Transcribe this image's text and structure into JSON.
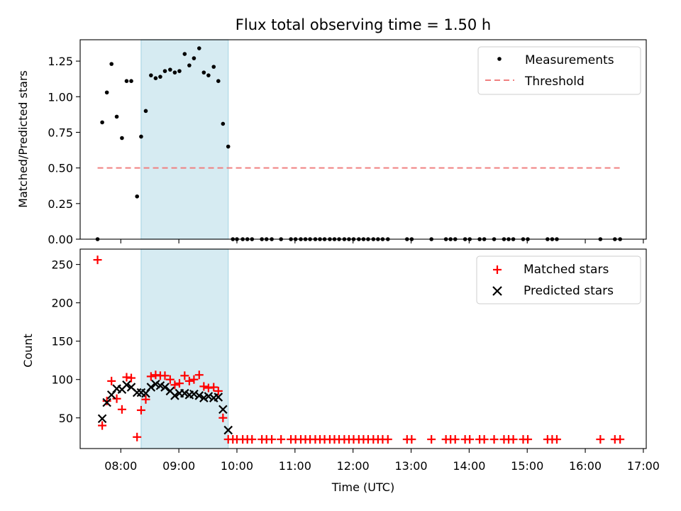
{
  "title": "Flux total observing time = 1.50 h",
  "chart_data": [
    {
      "type": "scatter",
      "ylabel": "Matched/Predicted stars",
      "xlabel": "",
      "xlim": [
        7.3,
        17.05
      ],
      "ylim": [
        0,
        1.4
      ],
      "yticks": [
        0,
        0.25,
        0.5,
        0.75,
        1.0,
        1.25
      ],
      "ytick_labels": [
        "0.00",
        "0.25",
        "0.50",
        "0.75",
        "1.00",
        "1.25"
      ],
      "shaded_span": [
        8.35,
        9.85
      ],
      "legend": [
        "Measurements",
        "Threshold"
      ],
      "threshold": {
        "name": "Threshold",
        "value": 0.5,
        "x": [
          7.6,
          16.6
        ],
        "color": "#f08080"
      },
      "series": [
        {
          "name": "Measurements",
          "color": "#000000",
          "x": [
            7.6,
            7.68,
            7.76,
            7.84,
            7.93,
            8.02,
            8.1,
            8.18,
            8.28,
            8.35,
            8.43,
            8.52,
            8.6,
            8.68,
            8.76,
            8.85,
            8.93,
            9.01,
            9.1,
            9.18,
            9.26,
            9.35,
            9.43,
            9.51,
            9.6,
            9.68,
            9.76,
            9.85,
            9.93,
            10.0,
            10.1,
            10.18,
            10.26,
            10.43,
            10.51,
            10.6,
            10.76,
            10.93,
            11.01,
            11.1,
            11.18,
            11.26,
            11.35,
            11.43,
            11.51,
            11.6,
            11.68,
            11.76,
            11.85,
            11.93,
            12.01,
            12.1,
            12.18,
            12.26,
            12.35,
            12.43,
            12.51,
            12.6,
            12.93,
            13.01,
            13.35,
            13.6,
            13.68,
            13.76,
            13.93,
            14.01,
            14.18,
            14.26,
            14.43,
            14.6,
            14.68,
            14.76,
            14.93,
            15.01,
            15.35,
            15.43,
            15.51,
            16.26,
            16.51,
            16.6
          ],
          "y": [
            0.0,
            0.82,
            1.03,
            1.23,
            0.86,
            0.71,
            1.11,
            1.11,
            0.3,
            0.72,
            0.9,
            1.15,
            1.13,
            1.14,
            1.18,
            1.19,
            1.17,
            1.18,
            1.3,
            1.22,
            1.27,
            1.34,
            1.17,
            1.15,
            1.21,
            1.11,
            0.81,
            0.65,
            0.0,
            0.0,
            0.0,
            0.0,
            0.0,
            0.0,
            0.0,
            0.0,
            0.0,
            0.0,
            0.0,
            0.0,
            0.0,
            0.0,
            0.0,
            0.0,
            0.0,
            0.0,
            0.0,
            0.0,
            0.0,
            0.0,
            0.0,
            0.0,
            0.0,
            0.0,
            0.0,
            0.0,
            0.0,
            0.0,
            0.0,
            0.0,
            0.0,
            0.0,
            0.0,
            0.0,
            0.0,
            0.0,
            0.0,
            0.0,
            0.0,
            0.0,
            0.0,
            0.0,
            0.0,
            0.0,
            0.0,
            0.0,
            0.0,
            0.0,
            0.0,
            0.0
          ]
        }
      ]
    },
    {
      "type": "scatter",
      "ylabel": "Count",
      "xlabel": "Time (UTC)",
      "xlim": [
        7.3,
        17.05
      ],
      "ylim": [
        10,
        270
      ],
      "yticks": [
        50,
        100,
        150,
        200,
        250
      ],
      "ytick_labels": [
        "50",
        "100",
        "150",
        "200",
        "250"
      ],
      "xticks": [
        8,
        9,
        10,
        11,
        12,
        13,
        14,
        15,
        16,
        17
      ],
      "xtick_labels": [
        "08:00",
        "09:00",
        "10:00",
        "11:00",
        "12:00",
        "13:00",
        "14:00",
        "15:00",
        "16:00",
        "17:00"
      ],
      "shaded_span": [
        8.35,
        9.85
      ],
      "legend": [
        "Matched stars",
        "Predicted stars"
      ],
      "series": [
        {
          "name": "Matched stars",
          "marker": "plus",
          "color": "#ff0000",
          "x": [
            7.6,
            7.68,
            7.76,
            7.84,
            7.93,
            8.02,
            8.1,
            8.18,
            8.28,
            8.35,
            8.43,
            8.52,
            8.6,
            8.68,
            8.76,
            8.85,
            8.93,
            9.01,
            9.1,
            9.18,
            9.26,
            9.35,
            9.43,
            9.51,
            9.6,
            9.68,
            9.76,
            9.85,
            9.93,
            10.0,
            10.1,
            10.18,
            10.26,
            10.43,
            10.51,
            10.6,
            10.76,
            10.93,
            11.01,
            11.1,
            11.18,
            11.26,
            11.35,
            11.43,
            11.51,
            11.6,
            11.68,
            11.76,
            11.85,
            11.93,
            12.01,
            12.1,
            12.18,
            12.26,
            12.35,
            12.43,
            12.51,
            12.6,
            12.93,
            13.01,
            13.35,
            13.6,
            13.68,
            13.76,
            13.93,
            14.01,
            14.18,
            14.26,
            14.43,
            14.6,
            14.68,
            14.76,
            14.93,
            15.01,
            15.35,
            15.43,
            15.51,
            16.26,
            16.51,
            16.6
          ],
          "y": [
            256,
            40,
            72,
            98,
            75,
            61,
            103,
            102,
            25,
            60,
            74,
            104,
            106,
            105,
            105,
            100,
            93,
            95,
            105,
            98,
            100,
            106,
            91,
            89,
            90,
            85,
            50,
            22,
            22,
            22,
            22,
            22,
            22,
            22,
            22,
            22,
            22,
            22,
            22,
            22,
            22,
            22,
            22,
            22,
            22,
            22,
            22,
            22,
            22,
            22,
            22,
            22,
            22,
            22,
            22,
            22,
            22,
            22,
            22,
            22,
            22,
            22,
            22,
            22,
            22,
            22,
            22,
            22,
            22,
            22,
            22,
            22,
            22,
            22,
            22,
            22,
            22,
            22,
            22,
            22
          ]
        },
        {
          "name": "Predicted stars",
          "marker": "x",
          "color": "#000000",
          "x": [
            7.68,
            7.76,
            7.84,
            7.93,
            8.02,
            8.1,
            8.18,
            8.28,
            8.35,
            8.43,
            8.52,
            8.6,
            8.68,
            8.76,
            8.85,
            8.93,
            9.01,
            9.1,
            9.18,
            9.26,
            9.35,
            9.43,
            9.51,
            9.6,
            9.68,
            9.76,
            9.85
          ],
          "y": [
            49,
            70,
            80,
            88,
            87,
            93,
            90,
            83,
            83,
            82,
            90,
            94,
            92,
            90,
            85,
            79,
            82,
            82,
            80,
            81,
            79,
            76,
            78,
            76,
            77,
            61,
            34
          ]
        }
      ]
    }
  ]
}
